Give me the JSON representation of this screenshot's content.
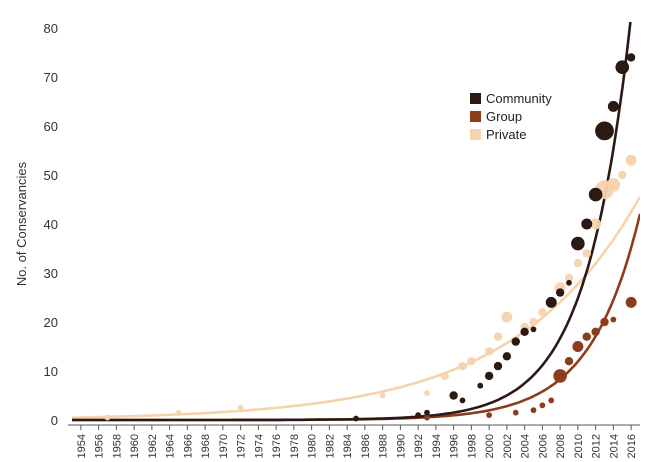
{
  "chart_data": {
    "type": "scatter",
    "title": "",
    "ylabel": "No. of Conservancies",
    "xlabel": "",
    "ylim": [
      0,
      80
    ],
    "xlim": [
      1953,
      2017
    ],
    "yticks": [
      0,
      10,
      20,
      30,
      40,
      50,
      60,
      70,
      80
    ],
    "xticks": [
      1954,
      1956,
      1958,
      1960,
      1962,
      1964,
      1966,
      1968,
      1970,
      1972,
      1974,
      1976,
      1978,
      1980,
      1982,
      1984,
      1986,
      1988,
      1990,
      1992,
      1994,
      1996,
      1998,
      2000,
      2002,
      2004,
      2006,
      2008,
      2010,
      2012,
      2014,
      2016
    ],
    "grid": false,
    "legend_position": "top-right",
    "colors": {
      "community": "#2b1a14",
      "group": "#8b3d1c",
      "private": "#f5d3ad"
    },
    "series": [
      {
        "name": "Community",
        "key": "community",
        "trend": {
          "type": "exponential",
          "a": 0.00034,
          "b": 0.2,
          "base_year": 1954
        },
        "points": [
          {
            "x": 1985,
            "y": 0.3,
            "size": 1
          },
          {
            "x": 1992,
            "y": 1,
            "size": 1
          },
          {
            "x": 1993,
            "y": 1.5,
            "size": 1
          },
          {
            "x": 1996,
            "y": 5,
            "size": 2
          },
          {
            "x": 1997,
            "y": 4,
            "size": 1
          },
          {
            "x": 1999,
            "y": 7,
            "size": 1
          },
          {
            "x": 2000,
            "y": 9,
            "size": 2
          },
          {
            "x": 2001,
            "y": 11,
            "size": 2
          },
          {
            "x": 2002,
            "y": 13,
            "size": 2
          },
          {
            "x": 2003,
            "y": 16,
            "size": 2
          },
          {
            "x": 2004,
            "y": 18,
            "size": 2
          },
          {
            "x": 2005,
            "y": 18.5,
            "size": 1
          },
          {
            "x": 2007,
            "y": 24,
            "size": 3
          },
          {
            "x": 2008,
            "y": 26,
            "size": 2
          },
          {
            "x": 2009,
            "y": 28,
            "size": 1
          },
          {
            "x": 2010,
            "y": 36,
            "size": 4
          },
          {
            "x": 2011,
            "y": 40,
            "size": 3
          },
          {
            "x": 2012,
            "y": 46,
            "size": 4
          },
          {
            "x": 2013,
            "y": 59,
            "size": 6
          },
          {
            "x": 2014,
            "y": 64,
            "size": 3
          },
          {
            "x": 2015,
            "y": 72,
            "size": 4
          },
          {
            "x": 2016,
            "y": 74,
            "size": 2
          }
        ]
      },
      {
        "name": "Group",
        "key": "group",
        "trend": {
          "type": "exponential",
          "a": 0.0005,
          "b": 0.18,
          "base_year": 1954
        },
        "points": [
          {
            "x": 1993,
            "y": 0.5,
            "size": 1
          },
          {
            "x": 2000,
            "y": 1,
            "size": 1
          },
          {
            "x": 2003,
            "y": 1.5,
            "size": 1
          },
          {
            "x": 2005,
            "y": 2,
            "size": 1
          },
          {
            "x": 2006,
            "y": 3,
            "size": 1
          },
          {
            "x": 2007,
            "y": 4,
            "size": 1
          },
          {
            "x": 2008,
            "y": 9,
            "size": 4
          },
          {
            "x": 2009,
            "y": 12,
            "size": 2
          },
          {
            "x": 2010,
            "y": 15,
            "size": 3
          },
          {
            "x": 2011,
            "y": 17,
            "size": 2
          },
          {
            "x": 2012,
            "y": 18,
            "size": 2
          },
          {
            "x": 2013,
            "y": 20,
            "size": 2
          },
          {
            "x": 2014,
            "y": 20.5,
            "size": 1
          },
          {
            "x": 2016,
            "y": 24,
            "size": 3
          }
        ]
      },
      {
        "name": "Private",
        "key": "private",
        "trend": {
          "type": "exponential",
          "a": 0.52,
          "b": 0.071,
          "base_year": 1954
        },
        "points": [
          {
            "x": 1957,
            "y": 0.5,
            "size": 1
          },
          {
            "x": 1965,
            "y": 1.5,
            "size": 1
          },
          {
            "x": 1972,
            "y": 2.5,
            "size": 1
          },
          {
            "x": 1988,
            "y": 5,
            "size": 1
          },
          {
            "x": 1993,
            "y": 5.5,
            "size": 1
          },
          {
            "x": 1995,
            "y": 9,
            "size": 2
          },
          {
            "x": 1997,
            "y": 11,
            "size": 2
          },
          {
            "x": 1998,
            "y": 12,
            "size": 2
          },
          {
            "x": 2000,
            "y": 14,
            "size": 2
          },
          {
            "x": 2001,
            "y": 17,
            "size": 2
          },
          {
            "x": 2002,
            "y": 21,
            "size": 3
          },
          {
            "x": 2004,
            "y": 19,
            "size": 2
          },
          {
            "x": 2005,
            "y": 20,
            "size": 2
          },
          {
            "x": 2006,
            "y": 22,
            "size": 2
          },
          {
            "x": 2008,
            "y": 27,
            "size": 3
          },
          {
            "x": 2009,
            "y": 29,
            "size": 2
          },
          {
            "x": 2010,
            "y": 32,
            "size": 2
          },
          {
            "x": 2011,
            "y": 34,
            "size": 2
          },
          {
            "x": 2012,
            "y": 40,
            "size": 3
          },
          {
            "x": 2013,
            "y": 47,
            "size": 6
          },
          {
            "x": 2014,
            "y": 48,
            "size": 4
          },
          {
            "x": 2015,
            "y": 50,
            "size": 2
          },
          {
            "x": 2016,
            "y": 53,
            "size": 3
          }
        ]
      }
    ]
  }
}
